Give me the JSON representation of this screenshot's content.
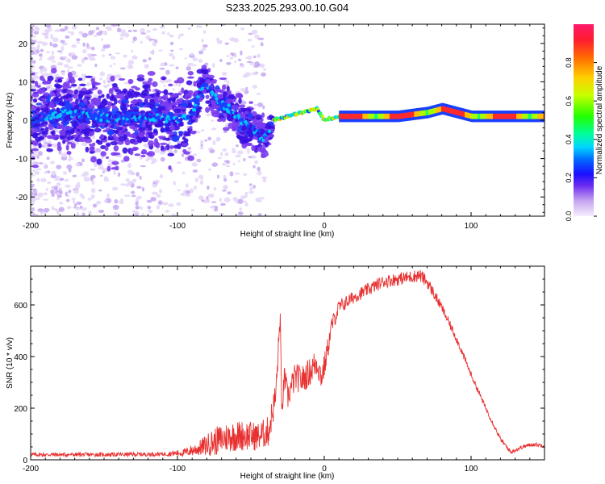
{
  "title": "S233.2025.293.00.10.G04",
  "colors": {
    "snr_line": "#e83030",
    "spectrum_low": "#9d7ae8",
    "spectrum_mid": "#3a10d8",
    "ridge_core": "#ff2a2a"
  },
  "chart_data": [
    {
      "type": "heatmap",
      "name": "spectrogram",
      "xlabel": "Height of straight line (km)",
      "ylabel": "Frequency (Hz)",
      "xlim": [
        -200,
        150
      ],
      "ylim": [
        -25,
        25
      ],
      "x_ticks": [
        -200,
        -100,
        0,
        100
      ],
      "x_tick_labels": [
        "-200",
        "-100",
        "0",
        "100"
      ],
      "y_ticks": [
        -20,
        -10,
        0,
        10,
        20
      ],
      "y_tick_labels": [
        "-20",
        "-10",
        "0",
        "10",
        "20"
      ],
      "ridge": {
        "x": [
          -200,
          -180,
          -160,
          -140,
          -120,
          -100,
          -90,
          -82,
          -75,
          -65,
          -55,
          -47,
          -40,
          -35,
          -25,
          -15,
          -5,
          0,
          10,
          30,
          50,
          70,
          80,
          90,
          100,
          120,
          150
        ],
        "freq": [
          0,
          2,
          1,
          0,
          1,
          0,
          2,
          10,
          6,
          3,
          -1,
          -3,
          -5,
          0,
          1,
          2,
          3,
          0,
          1,
          1,
          1,
          2,
          3,
          2,
          1,
          1,
          1
        ]
      },
      "colorbar": {
        "label": "Normalized spectral amplitude",
        "ticks": [
          0.0,
          0.2,
          0.4,
          0.6,
          0.8
        ],
        "tick_labels": [
          "0.0",
          "0.2",
          "0.4",
          "0.6",
          "0.8"
        ],
        "range": [
          0,
          1
        ]
      }
    },
    {
      "type": "line",
      "name": "snr",
      "xlabel": "Height of straight line (km)",
      "ylabel": "SNR (10 * v/v)",
      "xlim": [
        -200,
        150
      ],
      "ylim": [
        0,
        750
      ],
      "x_ticks": [
        -200,
        -100,
        0,
        100
      ],
      "x_tick_labels": [
        "-200",
        "-100",
        "0",
        "100"
      ],
      "y_ticks": [
        0,
        200,
        400,
        600
      ],
      "y_tick_labels": [
        "0",
        "200",
        "400",
        "600"
      ],
      "series": [
        {
          "name": "SNR",
          "x": [
            -200,
            -150,
            -110,
            -95,
            -85,
            -75,
            -65,
            -55,
            -45,
            -38,
            -33,
            -30,
            -29,
            -27,
            -25,
            -20,
            -15,
            -10,
            -5,
            -2,
            0,
            3,
            5,
            10,
            20,
            30,
            40,
            50,
            60,
            65,
            70,
            80,
            90,
            100,
            110,
            120,
            127,
            135,
            142,
            150
          ],
          "y": [
            20,
            20,
            22,
            28,
            45,
            70,
            90,
            95,
            90,
            110,
            250,
            560,
            180,
            330,
            240,
            320,
            310,
            340,
            380,
            320,
            360,
            450,
            520,
            590,
            630,
            660,
            690,
            700,
            710,
            715,
            690,
            590,
            470,
            330,
            200,
            80,
            30,
            50,
            60,
            55
          ],
          "noise": [
            8,
            8,
            8,
            15,
            30,
            55,
            60,
            60,
            55,
            60,
            60,
            40,
            40,
            45,
            50,
            55,
            55,
            55,
            60,
            50,
            50,
            40,
            35,
            30,
            25,
            25,
            25,
            25,
            25,
            25,
            25,
            18,
            15,
            12,
            10,
            8,
            8,
            8,
            8,
            8
          ]
        }
      ]
    }
  ]
}
